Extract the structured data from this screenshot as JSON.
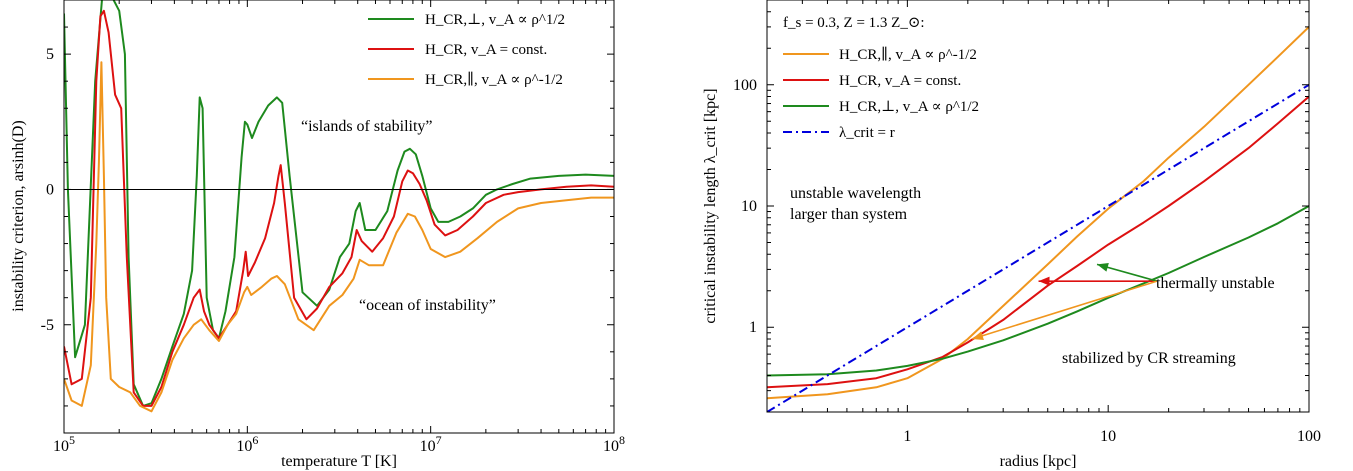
{
  "chart_data": [
    {
      "type": "line",
      "xlabel": "temperature T [K]",
      "ylabel": "instability criterion, arsinh(D)",
      "x_scale": "log",
      "xlim": [
        100000,
        100000000
      ],
      "ylim": [
        -9,
        7
      ],
      "x_ticks": [
        {
          "value": 100000,
          "label": "10^5"
        },
        {
          "value": 1000000,
          "label": "10^6"
        },
        {
          "value": 10000000,
          "label": "10^7"
        },
        {
          "value": 100000000,
          "label": "10^8"
        }
      ],
      "y_ticks": [
        {
          "value": -5,
          "label": "-5"
        },
        {
          "value": 0,
          "label": "0"
        },
        {
          "value": 5,
          "label": "5"
        }
      ],
      "reference_line": {
        "y": 0,
        "color": "#000000"
      },
      "legend_position": "top-right",
      "annotations": [
        {
          "text": "“islands of stability”",
          "x": 2500000,
          "y": 2.1
        },
        {
          "text": "“ocean of instability”",
          "x": 2700000,
          "y": -4.8
        }
      ],
      "series": [
        {
          "name": "H_CR,⊥, v_A ∝ ρ^1/2",
          "color": "#1e8a1e",
          "x": [
            100000,
            105000,
            115000,
            130000,
            148000,
            162000,
            180000,
            200000,
            215000,
            225000,
            240000,
            270000,
            300000,
            340000,
            390000,
            450000,
            500000,
            530000,
            550000,
            570000,
            600000,
            650000,
            700000,
            760000,
            850000,
            930000,
            970000,
            1000000,
            1060000,
            1150000,
            1300000,
            1450000,
            1550000,
            1700000,
            2000000,
            2400000,
            2800000,
            3200000,
            3600000,
            3900000,
            4100000,
            4400000,
            5000000,
            5800000,
            6600000,
            7200000,
            7700000,
            8300000,
            9000000,
            10000000,
            11000000,
            12500000,
            14500000,
            17000000,
            20000000,
            23000000,
            28000000,
            35000000,
            50000000,
            70000000,
            100000000
          ],
          "y": [
            6.5,
            0,
            -6.2,
            -5.0,
            4.0,
            7.2,
            7.2,
            6.6,
            5.0,
            -2.5,
            -7.2,
            -8.0,
            -7.9,
            -7.0,
            -5.8,
            -4.6,
            -3.0,
            0.5,
            3.4,
            3.0,
            -4.0,
            -5.2,
            -5.5,
            -4.5,
            -2.5,
            1.2,
            2.5,
            2.4,
            1.9,
            2.5,
            3.1,
            3.4,
            3.2,
            0.5,
            -3.8,
            -4.3,
            -3.7,
            -2.5,
            -2.0,
            -0.8,
            -0.5,
            -1.5,
            -1.5,
            -0.8,
            0.7,
            1.4,
            1.5,
            1.3,
            0.5,
            -0.7,
            -1.2,
            -1.2,
            -1.0,
            -0.7,
            -0.2,
            0.0,
            0.2,
            0.4,
            0.5,
            0.55,
            0.5
          ]
        },
        {
          "name": "H_CR, v_A = const.",
          "color": "#dd1111",
          "x": [
            100000,
            110000,
            125000,
            140000,
            150000,
            158000,
            165000,
            175000,
            190000,
            205000,
            220000,
            240000,
            270000,
            300000,
            340000,
            390000,
            450000,
            510000,
            550000,
            580000,
            620000,
            700000,
            780000,
            870000,
            950000,
            980000,
            1010000,
            1100000,
            1250000,
            1400000,
            1480000,
            1520000,
            1600000,
            1800000,
            2100000,
            2400000,
            2800000,
            3300000,
            3700000,
            3950000,
            4200000,
            4800000,
            5500000,
            6300000,
            7000000,
            7500000,
            8000000,
            8700000,
            9500000,
            10500000,
            12000000,
            14000000,
            17000000,
            20000000,
            25000000,
            30000000,
            40000000,
            55000000,
            75000000,
            100000000
          ],
          "y": [
            -5.8,
            -7.2,
            -7.0,
            -4.0,
            4.0,
            6.4,
            6.6,
            5.8,
            3.5,
            3.0,
            -2.5,
            -7.5,
            -8.0,
            -8.0,
            -7.3,
            -6.0,
            -5.0,
            -4.0,
            -3.7,
            -4.5,
            -5.0,
            -5.5,
            -5.0,
            -4.5,
            -3.0,
            -2.3,
            -3.2,
            -2.7,
            -1.8,
            -0.5,
            0.5,
            0.9,
            -0.5,
            -4.0,
            -4.8,
            -4.4,
            -3.6,
            -3.1,
            -2.5,
            -1.5,
            -1.9,
            -2.3,
            -1.8,
            -1.0,
            0.3,
            0.7,
            0.6,
            0.2,
            -0.4,
            -1.3,
            -1.7,
            -1.5,
            -1.0,
            -0.5,
            -0.2,
            -0.1,
            0.0,
            0.1,
            0.15,
            0.1
          ]
        },
        {
          "name": "H_CR,∥, v_A ∝ ρ^-1/2",
          "color": "#f0961e",
          "x": [
            100000,
            110000,
            125000,
            140000,
            150000,
            155000,
            160000,
            165000,
            170000,
            180000,
            200000,
            230000,
            260000,
            300000,
            340000,
            390000,
            450000,
            510000,
            560000,
            620000,
            700000,
            780000,
            870000,
            960000,
            1000000,
            1050000,
            1200000,
            1350000,
            1450000,
            1600000,
            1900000,
            2300000,
            2800000,
            3300000,
            3800000,
            4100000,
            4600000,
            5500000,
            6500000,
            7500000,
            8200000,
            9000000,
            10000000,
            12000000,
            14500000,
            18000000,
            23000000,
            30000000,
            40000000,
            55000000,
            75000000,
            100000000
          ],
          "y": [
            -7.0,
            -7.8,
            -8.0,
            -6.5,
            -2.0,
            1.0,
            4.7,
            0.5,
            -4.0,
            -7.0,
            -7.3,
            -7.5,
            -8.0,
            -8.2,
            -7.5,
            -6.3,
            -5.5,
            -5.0,
            -4.8,
            -5.2,
            -5.6,
            -5.0,
            -4.6,
            -3.8,
            -3.6,
            -3.9,
            -3.6,
            -3.3,
            -3.2,
            -3.5,
            -4.8,
            -5.2,
            -4.3,
            -3.9,
            -3.3,
            -2.6,
            -2.8,
            -2.8,
            -1.6,
            -0.9,
            -1.0,
            -1.5,
            -2.2,
            -2.5,
            -2.3,
            -1.8,
            -1.2,
            -0.7,
            -0.5,
            -0.4,
            -0.3,
            -0.3
          ]
        }
      ]
    },
    {
      "type": "line",
      "xlabel": "radius [kpc]",
      "ylabel": "critical instability length λ_crit [kpc]",
      "x_scale": "log",
      "y_scale": "log",
      "xlim": [
        0.2,
        100
      ],
      "ylim": [
        0.2,
        500
      ],
      "x_ticks": [
        {
          "value": 1,
          "label": "1"
        },
        {
          "value": 10,
          "label": "10"
        },
        {
          "value": 100,
          "label": "100"
        }
      ],
      "y_ticks": [
        {
          "value": 1,
          "label": "1"
        },
        {
          "value": 10,
          "label": "10"
        },
        {
          "value": 100,
          "label": "100"
        }
      ],
      "legend_position": "top-left",
      "legend_title": "f_s = 0.3, Z = 1.3 Z_⊙:",
      "annotations": [
        {
          "text": "unstable wavelength",
          "x": 0.5,
          "y": 14
        },
        {
          "text": "larger than system",
          "x": 0.5,
          "y": 8.5
        },
        {
          "text": "thermally unstable",
          "x": 20,
          "y": 2.4
        },
        {
          "text": "stabilized by CR streaming",
          "x": 10,
          "y": 0.5
        }
      ],
      "arrows": [
        {
          "color": "#dd1111",
          "from": [
            17.5,
            2.4
          ],
          "to": [
            4.5,
            2.4
          ]
        },
        {
          "color": "#1e8a1e",
          "from": [
            17.5,
            2.4
          ],
          "to": [
            8.8,
            3.3
          ]
        },
        {
          "color": "#f0961e",
          "from": [
            17.5,
            2.4
          ],
          "to": [
            2.1,
            0.8
          ]
        }
      ],
      "series": [
        {
          "name": "H_CR,∥, v_A ∝ ρ^-1/2",
          "color": "#f0961e",
          "x": [
            0.2,
            0.4,
            0.7,
            1.0,
            1.5,
            2.0,
            3.0,
            5.0,
            7.0,
            10.0,
            15.0,
            20.0,
            30.0,
            50.0,
            70.0,
            100.0
          ],
          "y": [
            0.26,
            0.28,
            0.32,
            0.38,
            0.55,
            0.8,
            1.5,
            3.3,
            5.6,
            9.5,
            16.0,
            25.0,
            45.0,
            100.0,
            170.0,
            300.0
          ]
        },
        {
          "name": "H_CR, v_A = const.",
          "color": "#dd1111",
          "x": [
            0.2,
            0.4,
            0.7,
            1.0,
            1.5,
            2.0,
            3.0,
            5.0,
            7.0,
            10.0,
            15.0,
            20.0,
            30.0,
            50.0,
            70.0,
            100.0
          ],
          "y": [
            0.32,
            0.34,
            0.38,
            0.45,
            0.57,
            0.75,
            1.15,
            2.2,
            3.2,
            4.8,
            7.3,
            10.0,
            16.0,
            30.0,
            48.0,
            80.0
          ]
        },
        {
          "name": "H_CR,⊥, v_A ∝ ρ^1/2",
          "color": "#1e8a1e",
          "x": [
            0.2,
            0.4,
            0.7,
            1.0,
            1.5,
            2.0,
            3.0,
            5.0,
            7.0,
            10.0,
            15.0,
            20.0,
            30.0,
            50.0,
            70.0,
            100.0
          ],
          "y": [
            0.4,
            0.41,
            0.44,
            0.48,
            0.55,
            0.63,
            0.78,
            1.07,
            1.35,
            1.75,
            2.3,
            2.8,
            3.8,
            5.5,
            7.2,
            10.0
          ]
        },
        {
          "name": "λ_crit = r",
          "color": "#0000dd",
          "dash": "dashdot",
          "x": [
            0.2,
            100.0
          ],
          "y": [
            0.2,
            100.0
          ]
        }
      ]
    }
  ]
}
